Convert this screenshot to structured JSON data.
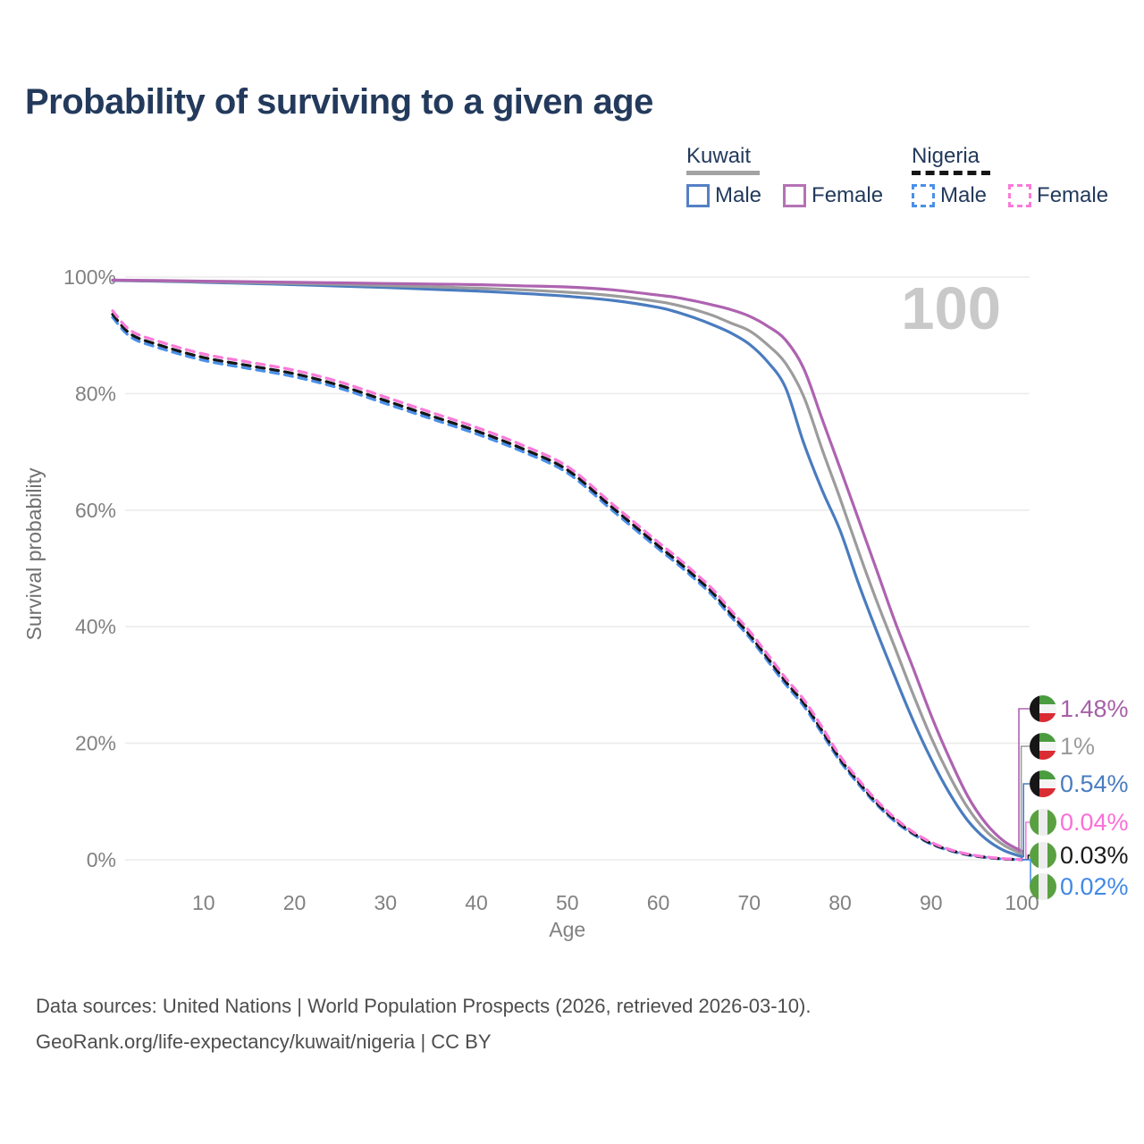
{
  "title": "Probability of surviving to a given age",
  "watermark": "100",
  "legend": {
    "groups": [
      {
        "label": "Kuwait",
        "line_style": "solid",
        "line_color": "#a3a3a3",
        "items": [
          {
            "label": "Male",
            "color": "#5580c4",
            "dashed": false
          },
          {
            "label": "Female",
            "color": "#b573b5",
            "dashed": false
          }
        ]
      },
      {
        "label": "Nigeria",
        "line_style": "dashed",
        "line_color": "#161616",
        "items": [
          {
            "label": "Male",
            "color": "#4a90e8",
            "dashed": true
          },
          {
            "label": "Female",
            "color": "#fa7ad8",
            "dashed": true
          }
        ]
      }
    ]
  },
  "chart_data": {
    "type": "line",
    "title": "Probability of surviving to a given age",
    "xlabel": "Age",
    "ylabel": "Survival probability",
    "xlim": [
      0,
      100
    ],
    "ylim": [
      0,
      100
    ],
    "grid": "horizontal",
    "x_ticks": [
      10,
      20,
      30,
      40,
      50,
      60,
      70,
      80,
      90,
      100
    ],
    "y_ticks": [
      {
        "value": 100,
        "label": "100%"
      },
      {
        "value": 80,
        "label": "80%"
      },
      {
        "value": 60,
        "label": "60%"
      },
      {
        "value": 40,
        "label": "40%"
      },
      {
        "value": 20,
        "label": "20%"
      },
      {
        "value": 0,
        "label": "0%"
      }
    ],
    "ages": [
      0,
      2,
      5,
      10,
      15,
      20,
      25,
      30,
      35,
      40,
      45,
      50,
      55,
      60,
      62,
      64,
      66,
      68,
      70,
      72,
      74,
      76,
      78,
      80,
      82,
      84,
      86,
      88,
      90,
      92,
      94,
      96,
      98,
      100
    ],
    "series": [
      {
        "id": "nigeria-male",
        "name": "Nigeria Male",
        "color": "#4a90e8",
        "dash": true,
        "end_label": "0.02%",
        "values": [
          93.1,
          89.7,
          87.9,
          85.7,
          84.3,
          82.9,
          80.9,
          78.3,
          75.7,
          73.1,
          70.1,
          66.4,
          59.9,
          53.4,
          50.9,
          48.2,
          45.3,
          41.7,
          38.2,
          34.2,
          30.1,
          26.4,
          21.7,
          16.9,
          13.0,
          9.5,
          6.6,
          4.4,
          2.7,
          1.6,
          0.85,
          0.4,
          0.12,
          0.02
        ]
      },
      {
        "id": "nigeria-total",
        "name": "Nigeria",
        "color": "#161616",
        "dash": true,
        "end_label": "0.03%",
        "values": [
          93.6,
          90.2,
          88.4,
          86.2,
          84.8,
          83.4,
          81.4,
          78.8,
          76.2,
          73.6,
          70.6,
          66.9,
          60.4,
          53.9,
          51.4,
          48.7,
          45.8,
          42.2,
          38.7,
          34.7,
          30.6,
          26.9,
          22.2,
          17.3,
          13.4,
          9.8,
          6.9,
          4.6,
          2.8,
          1.7,
          0.9,
          0.45,
          0.15,
          0.03
        ]
      },
      {
        "id": "nigeria-female",
        "name": "Nigeria Female",
        "color": "#fa7ad8",
        "dash": true,
        "end_label": "0.04%",
        "values": [
          94.2,
          90.8,
          89.0,
          86.8,
          85.4,
          84.0,
          82.0,
          79.4,
          76.8,
          74.2,
          71.2,
          67.5,
          61.0,
          54.5,
          52.0,
          49.3,
          46.4,
          42.8,
          39.3,
          35.3,
          31.2,
          27.5,
          22.8,
          17.8,
          13.8,
          10.2,
          7.2,
          4.8,
          3.0,
          1.8,
          1.0,
          0.5,
          0.2,
          0.04
        ]
      },
      {
        "id": "kuwait-male",
        "name": "Kuwait Male",
        "color": "#4a7cbf",
        "dash": false,
        "end_label": "0.54%",
        "values": [
          99.4,
          99.35,
          99.3,
          99.1,
          98.9,
          98.7,
          98.45,
          98.2,
          97.9,
          97.6,
          97.2,
          96.7,
          96.0,
          94.8,
          94.0,
          93.0,
          91.8,
          90.4,
          88.5,
          85.5,
          81.0,
          71.5,
          63.5,
          56.5,
          47.5,
          39.3,
          31.5,
          24.0,
          17.3,
          11.5,
          6.8,
          3.6,
          1.6,
          0.54
        ]
      },
      {
        "id": "kuwait-total",
        "name": "Kuwait",
        "color": "#9c9c9c",
        "dash": false,
        "end_label": "1%",
        "values": [
          99.45,
          99.4,
          99.35,
          99.2,
          99.05,
          98.9,
          98.75,
          98.55,
          98.35,
          98.1,
          97.8,
          97.4,
          96.8,
          95.8,
          95.2,
          94.4,
          93.4,
          92.1,
          90.8,
          88.4,
          85.2,
          79.5,
          70.5,
          62.0,
          53.0,
          44.5,
          36.5,
          28.5,
          21.0,
          14.5,
          9.0,
          5.0,
          2.5,
          1.0
        ]
      },
      {
        "id": "kuwait-female",
        "name": "Kuwait Female",
        "color": "#ae63b0",
        "dash": false,
        "end_label": "1.48%",
        "values": [
          99.5,
          99.45,
          99.4,
          99.3,
          99.2,
          99.1,
          99.0,
          98.9,
          98.8,
          98.7,
          98.5,
          98.3,
          97.8,
          96.9,
          96.5,
          95.9,
          95.2,
          94.4,
          93.3,
          91.6,
          89.2,
          84.3,
          75.7,
          67.2,
          58.5,
          49.8,
          41.0,
          33.0,
          24.8,
          17.5,
          11.0,
          6.3,
          3.2,
          1.48
        ]
      }
    ],
    "legend_position": "top-right"
  },
  "end_labels": [
    {
      "series": "kuwait-female",
      "text": "1.48%",
      "color": "#a75fa7",
      "flag": "kuwait"
    },
    {
      "series": "kuwait-total",
      "text": "1%",
      "color": "#9b9b9b",
      "flag": "kuwait"
    },
    {
      "series": "kuwait-male",
      "text": "0.54%",
      "color": "#4a7cbf",
      "flag": "kuwait"
    },
    {
      "series": "nigeria-female",
      "text": "0.04%",
      "color": "#fb6fd8",
      "flag": "nigeria"
    },
    {
      "series": "nigeria-total",
      "text": "0.03%",
      "color": "#1a1a1a",
      "flag": "nigeria"
    },
    {
      "series": "nigeria-male",
      "text": "0.02%",
      "color": "#4189e6",
      "flag": "nigeria"
    }
  ],
  "flag_colors": {
    "kuwait": {
      "green": "#4a9c3f",
      "white": "#f4f4f4",
      "red": "#da2c33",
      "black": "#161616"
    },
    "nigeria": {
      "green": "#59a041",
      "white": "#ededed"
    }
  },
  "footer": {
    "line1": "Data sources: United Nations | World Population Prospects (2026, retrieved 2026-03-10).",
    "line2": "GeoRank.org/life-expectancy/kuwait/nigeria | CC BY"
  }
}
